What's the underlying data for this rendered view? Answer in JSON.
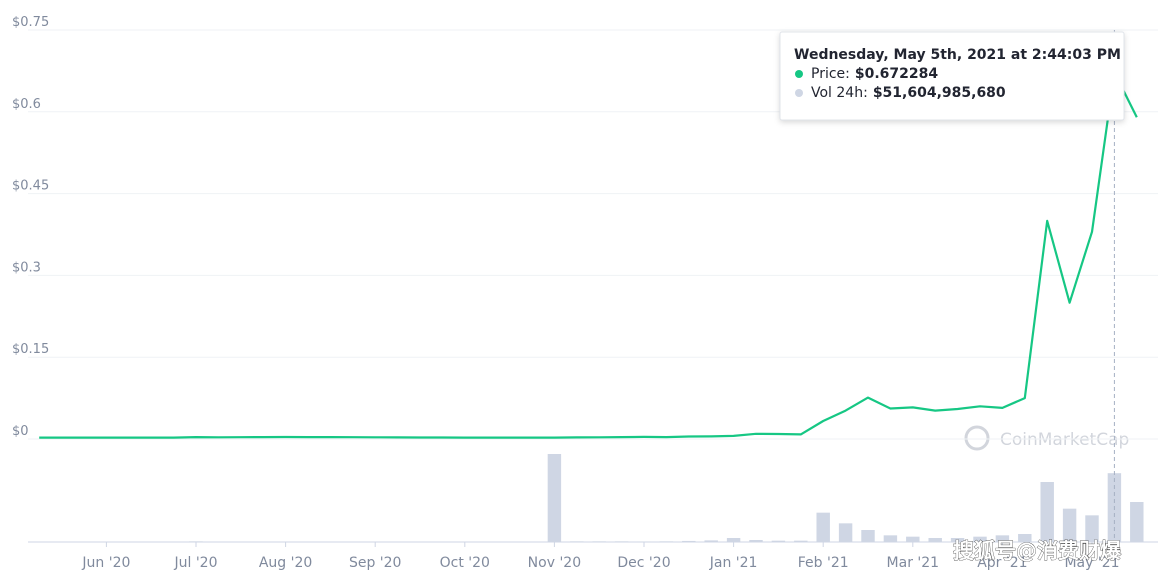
{
  "chart_data": {
    "type": "line",
    "categories": [
      null,
      null,
      null,
      "Jun '20",
      null,
      null,
      null,
      "Jul '20",
      null,
      null,
      null,
      "Aug '20",
      null,
      null,
      null,
      "Sep '20",
      null,
      null,
      null,
      "Oct '20",
      null,
      null,
      null,
      "Nov '20",
      null,
      null,
      null,
      "Dec '20",
      null,
      null,
      null,
      "Jan '21",
      null,
      null,
      null,
      "Feb '21",
      null,
      null,
      null,
      "Mar '21",
      null,
      null,
      null,
      "Apr '21",
      null,
      null,
      null,
      "May '21",
      null,
      null
    ],
    "series": [
      {
        "name": "Price:",
        "color": "#16c784",
        "values": [
          0.0025,
          0.0026,
          0.0025,
          0.0026,
          0.0025,
          0.0025,
          0.0026,
          0.0034,
          0.0032,
          0.0033,
          0.0034,
          0.0036,
          0.0035,
          0.0034,
          0.0033,
          0.0031,
          0.0029,
          0.0028,
          0.0027,
          0.0026,
          0.0026,
          0.0026,
          0.0026,
          0.0026,
          0.003,
          0.0032,
          0.0035,
          0.0038,
          0.0035,
          0.0046,
          0.0047,
          0.0057,
          0.0095,
          0.0092,
          0.0085,
          0.033,
          0.052,
          0.076,
          0.056,
          0.058,
          0.052,
          0.055,
          0.06,
          0.057,
          0.075,
          0.4,
          0.25,
          0.38,
          0.672284,
          0.59
        ]
      },
      {
        "name": "Vol 24h:",
        "color": "#cfd6e4",
        "axis": "y2",
        "values": [
          300000000,
          300000000,
          300000000,
          200000000,
          200000000,
          200000000,
          200000000,
          500000000,
          300000000,
          200000000,
          200000000,
          300000000,
          200000000,
          200000000,
          200000000,
          200000000,
          200000000,
          200000000,
          200000000,
          200000000,
          200000000,
          200000000,
          200000000,
          66000000000,
          500000000,
          500000000,
          500000000,
          400000000,
          500000000,
          800000000,
          1200000000,
          3000000000,
          1500000000,
          1000000000,
          1000000000,
          22000000000,
          14000000000,
          9000000000,
          5000000000,
          4000000000,
          3000000000,
          3000000000,
          4000000000,
          5000000000,
          6000000000,
          45000000000,
          25000000000,
          20000000000,
          51604985680,
          30000000000
        ]
      }
    ],
    "ylim": [
      0,
      0.75
    ],
    "yticks": [
      {
        "value": 0,
        "label": "$0"
      },
      {
        "value": 0.15,
        "label": "$0.15"
      },
      {
        "value": 0.3,
        "label": "$0.3"
      },
      {
        "value": 0.45,
        "label": "$0.45"
      },
      {
        "value": 0.6,
        "label": "$0.6"
      },
      {
        "value": 0.75,
        "label": "$0.75"
      }
    ],
    "y2lim": [
      0,
      75000000000
    ],
    "grid": true,
    "tooltip": {
      "index": 48,
      "title": "Wednesday, May 5th, 2021 at 2:44:03 PM",
      "labels": [
        "$0.672284",
        "$51,604,985,680"
      ]
    },
    "watermark": "CoinMarketCap",
    "source_mark": "搜狐号@消费财爆"
  }
}
